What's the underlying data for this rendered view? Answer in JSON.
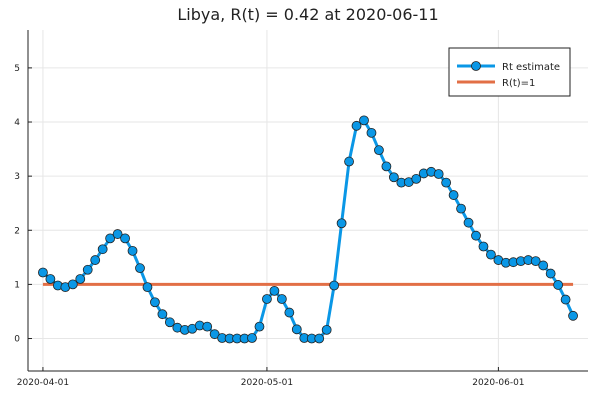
{
  "chart_data": {
    "type": "line",
    "title": "Libya, R(t) = 0.42 at 2020-06-11",
    "xlabel": "",
    "ylabel": "",
    "x_start": "2020-04-01",
    "x_ticks": [
      {
        "label": "2020-04-01",
        "date": "2020-04-01"
      },
      {
        "label": "2020-05-01",
        "date": "2020-05-01"
      },
      {
        "label": "2020-06-01",
        "date": "2020-06-01"
      }
    ],
    "xlim": [
      "2020-03-30",
      "2020-06-13"
    ],
    "ylim": [
      -0.6,
      5.7
    ],
    "y_ticks": [
      0,
      1,
      2,
      3,
      4,
      5
    ],
    "grid": true,
    "legend": {
      "position": "top-right"
    },
    "series": [
      {
        "name": "Rt estimate",
        "color": "#0a97e6",
        "marker": "circle",
        "x": [
          "2020-04-01",
          "2020-04-02",
          "2020-04-03",
          "2020-04-04",
          "2020-04-05",
          "2020-04-06",
          "2020-04-07",
          "2020-04-08",
          "2020-04-09",
          "2020-04-10",
          "2020-04-11",
          "2020-04-12",
          "2020-04-13",
          "2020-04-14",
          "2020-04-15",
          "2020-04-16",
          "2020-04-17",
          "2020-04-18",
          "2020-04-19",
          "2020-04-20",
          "2020-04-21",
          "2020-04-22",
          "2020-04-23",
          "2020-04-24",
          "2020-04-25",
          "2020-04-26",
          "2020-04-27",
          "2020-04-28",
          "2020-04-29",
          "2020-04-30",
          "2020-05-01",
          "2020-05-02",
          "2020-05-03",
          "2020-05-04",
          "2020-05-05",
          "2020-05-06",
          "2020-05-07",
          "2020-05-08",
          "2020-05-09",
          "2020-05-10",
          "2020-05-11",
          "2020-05-12",
          "2020-05-13",
          "2020-05-14",
          "2020-05-15",
          "2020-05-16",
          "2020-05-17",
          "2020-05-18",
          "2020-05-19",
          "2020-05-20",
          "2020-05-21",
          "2020-05-22",
          "2020-05-23",
          "2020-05-24",
          "2020-05-25",
          "2020-05-26",
          "2020-05-27",
          "2020-05-28",
          "2020-05-29",
          "2020-05-30",
          "2020-05-31",
          "2020-06-01",
          "2020-06-02",
          "2020-06-03",
          "2020-06-04",
          "2020-06-05",
          "2020-06-06",
          "2020-06-07",
          "2020-06-08",
          "2020-06-09",
          "2020-06-10",
          "2020-06-11"
        ],
        "y": [
          1.22,
          1.1,
          0.98,
          0.95,
          1.0,
          1.1,
          1.27,
          1.45,
          1.65,
          1.85,
          1.93,
          1.85,
          1.62,
          1.3,
          0.95,
          0.67,
          0.45,
          0.3,
          0.2,
          0.16,
          0.18,
          0.24,
          0.22,
          0.08,
          0.01,
          0.0,
          0.0,
          0.0,
          0.01,
          0.22,
          0.73,
          0.88,
          0.73,
          0.48,
          0.17,
          0.01,
          0.0,
          0.0,
          0.16,
          0.98,
          2.13,
          3.27,
          3.93,
          4.03,
          3.8,
          3.48,
          3.18,
          2.98,
          2.88,
          2.89,
          2.95,
          3.05,
          3.08,
          3.04,
          2.88,
          2.65,
          2.4,
          2.14,
          1.9,
          1.7,
          1.55,
          1.45,
          1.4,
          1.41,
          1.43,
          1.45,
          1.43,
          1.35,
          1.2,
          0.99,
          0.72,
          0.42
        ]
      },
      {
        "name": "R(t)=1",
        "color": "#e26f46",
        "marker": "none",
        "x": [
          "2020-04-01",
          "2020-06-11"
        ],
        "y": [
          1,
          1
        ]
      }
    ]
  }
}
